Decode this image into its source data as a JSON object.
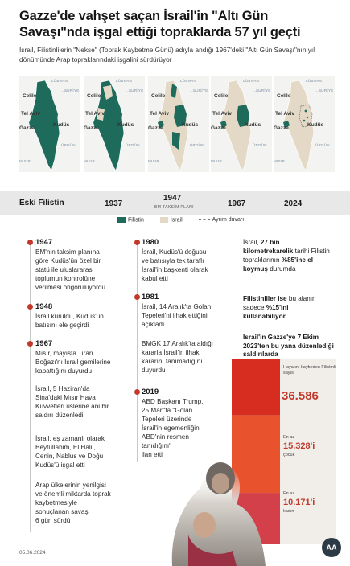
{
  "title": "Gazze'de vahşet saçan İsrail'in \"Altı Gün Savaşı\"nda işgal ettiği topraklarda 57 yıl geçti",
  "subtitle": "İsrail, Filistinlilerin \"Nekse\" (Toprak Kaybetme Günü) adıyla andığı 1967'deki \"Altı Gün Savaşı\"nın yıl dönümünde Arap topraklarındaki işgalini sürdürüyor",
  "map_labels": {
    "lubnan": "LÜBNAN",
    "suriye": "SURİYE",
    "celile": "Celile",
    "tel_aviv": "Tel Aviv",
    "kudus": "Kudüs",
    "gazze": "Gazze",
    "urdun": "ÜRDÜN",
    "misir": "MISIR"
  },
  "years": {
    "y0": "Eski Filistin",
    "y1": "1937",
    "y2": "1947",
    "y2_sub": "BM TAKSİM PLANI",
    "y3": "1967",
    "y4": "2024"
  },
  "legend": {
    "filistin": "Filistin",
    "israil": "İsrail",
    "duvar": "Ayrım duvarı"
  },
  "colors": {
    "palestine": "#1e6b5c",
    "israel": "#e3d9c6",
    "accent": "#c0392b"
  },
  "timeline_left": [
    {
      "year": "1947",
      "text": "BM'nin taksim planına\ngöre Kudüs'ün özel bir\nstatü ile uluslararası\ntoplumun kontrolüne\nverilmesi öngörülüyordu"
    },
    {
      "year": "1948",
      "text": "İsrail kuruldu, Kudüs'ün\nbatısını ele geçirdi"
    },
    {
      "year": "1967",
      "text": "Mısır, mayısta Tiran\nBoğazı'nı İsrail gemilerine\nkapattığını duyurdu"
    },
    {
      "year": "",
      "text": "İsrail, 5 Haziran'da\nSina'daki Mısır Hava\nKuvvetleri üslerine ani bir\nsaldırı düzenledi"
    },
    {
      "year": "",
      "text": "İsrail, eş zamanlı olarak\nBeytullahim, El Halil,\nCenin, Nablus ve Doğu\nKudüs'ü işgal etti"
    },
    {
      "year": "",
      "text": "Arap ülkelerinin yenilgisi\nve önemli miktarda toprak\nkaybetmesiyle\nsonuçlanan savaş\n6 gün sürdü"
    }
  ],
  "timeline_right": [
    {
      "year": "1980",
      "text": "İsrail, Kudüs'ü doğusu\nve batısıyla tek taraflı\nİsrail'in başkenti olarak\nkabul etti"
    },
    {
      "year": "1981",
      "text": "İsrail, 14 Aralık'ta Golan\nTepeleri'ni ilhak ettiğini\naçıkladı"
    },
    {
      "year": "",
      "text": "BMGK 17 Aralık'ta aldığı\nkararla İsrail'in ilhak\nkararını tanımadığını\nduyurdu"
    },
    {
      "year": "2019",
      "text": "ABD Başkanı Trump,\n25 Mart'ta \"Golan\nTepeleri üzerinde\nİsrail'in egemenliğini\nABD'nin resmen\ntanıdığını\"\nilan etti"
    }
  ],
  "facts": {
    "f1_pre": "İsrail, ",
    "f1_bold": "27 bin kilometrekarelik",
    "f1_mid": " tarihi Filistin topraklarının ",
    "f1_bold2": "%85'ine el koymuş",
    "f1_post": " durumda",
    "f2_pre": "Filistinliler ise",
    "f2_mid": " bu alanın sadece ",
    "f2_bold": "%15'ini kullanabiliyor"
  },
  "gaza": {
    "title": "İsrail'in Gazze'ye 7 Ekim 2023'ten bu yana düzenlediği saldırılarda",
    "killed_label": "Hayatını kaybeden Filistinli sayısı",
    "killed_value": "36.586",
    "children_prefix": "En az",
    "children_value": "15.328'i",
    "children_label": "çocuk",
    "women_prefix": "En az",
    "women_value": "10.171'i",
    "women_label": "kadın",
    "stats": {
      "killed": 36586,
      "children": 15328,
      "women": 10171
    }
  },
  "footer": {
    "date": "05.06.2024",
    "logo": "AA"
  }
}
